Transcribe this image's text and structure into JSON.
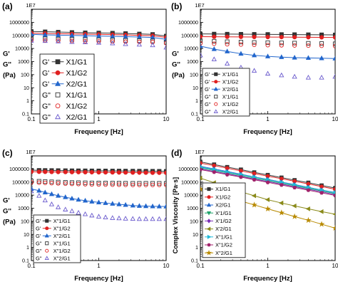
{
  "chart_data": [
    {
      "panel_label": "(a)",
      "type": "scatter",
      "xlabel": "Frequency [Hz]",
      "ylabel_lines": [
        "G'",
        "G''",
        "(Pa)"
      ],
      "y_axis_labels": [
        "1E7",
        "1000000",
        "100000",
        "10000",
        "1000",
        "100",
        "10",
        "1",
        "0.1"
      ],
      "x_tick_labels": [
        "0.1",
        "1",
        "10"
      ],
      "xscale": "log",
      "yscale": "log",
      "xlim": [
        0.1,
        10
      ],
      "ylim": [
        0.1,
        10000000
      ],
      "legend_position": "left",
      "x": [
        0.1,
        0.16,
        0.25,
        0.4,
        0.63,
        1.0,
        1.6,
        2.5,
        4.0,
        6.3,
        10
      ],
      "series": [
        {
          "name": "X1/G1",
          "prefix": "G'",
          "marker": "square",
          "filled": true,
          "color": "#333333",
          "values": [
            200000,
            190000,
            180000,
            170000,
            160000,
            155000,
            150000,
            140000,
            130000,
            120000,
            90000
          ]
        },
        {
          "name": "X1/G2",
          "prefix": "G'",
          "marker": "circle",
          "filled": true,
          "color": "#e02020",
          "values": [
            150000,
            140000,
            135000,
            130000,
            125000,
            120000,
            115000,
            110000,
            100000,
            95000,
            70000
          ]
        },
        {
          "name": "X2/G1",
          "prefix": "G'",
          "marker": "triangle",
          "filled": true,
          "color": "#2266cc",
          "values": [
            120000,
            110000,
            105000,
            100000,
            95000,
            90000,
            85000,
            80000,
            75000,
            70000,
            50000
          ]
        },
        {
          "name": "X1/G1",
          "prefix": "G\"",
          "marker": "square",
          "filled": false,
          "color": "#333333",
          "values": [
            60000,
            55000,
            52000,
            50000,
            48000,
            46000,
            44000,
            42000,
            40000,
            38000,
            30000
          ]
        },
        {
          "name": "X1/G2",
          "prefix": "G\"",
          "marker": "circle",
          "filled": false,
          "color": "#e02020",
          "values": [
            45000,
            42000,
            40000,
            38000,
            36000,
            35000,
            34000,
            33000,
            32000,
            31000,
            25000
          ]
        },
        {
          "name": "X2/G1",
          "prefix": "G\"",
          "marker": "triangle",
          "filled": false,
          "color": "#6a5acd",
          "values": [
            40000,
            38000,
            35000,
            32000,
            30000,
            28000,
            25000,
            22000,
            20000,
            18000,
            12000
          ]
        }
      ]
    },
    {
      "panel_label": "(b)",
      "type": "scatter",
      "xlabel": "Frequency [Hz]",
      "ylabel_lines": [
        "G'",
        "G''",
        "(Pa)"
      ],
      "y_axis_labels": [
        "1E7",
        "1000000",
        "100000",
        "10000",
        "1000",
        "100",
        "10",
        "1",
        "0.1"
      ],
      "x_tick_labels": [
        "0.1",
        "1",
        "10"
      ],
      "xscale": "log",
      "yscale": "log",
      "xlim": [
        0.1,
        10
      ],
      "ylim": [
        0.1,
        10000000
      ],
      "legend_position": "bottom-left",
      "x": [
        0.1,
        0.16,
        0.25,
        0.4,
        0.63,
        1.0,
        1.6,
        2.5,
        4.0,
        6.3,
        10
      ],
      "series": [
        {
          "name": "X'1/G1",
          "prefix": "G'",
          "marker": "square",
          "filled": true,
          "color": "#333333",
          "values": [
            130000,
            128000,
            126000,
            124000,
            122000,
            120000,
            118000,
            116000,
            114000,
            112000,
            110000
          ]
        },
        {
          "name": "X'1/G2",
          "prefix": "G'",
          "marker": "circle",
          "filled": true,
          "color": "#e02020",
          "values": [
            80000,
            79000,
            78000,
            77000,
            76000,
            75000,
            74000,
            73000,
            72000,
            71000,
            70000
          ]
        },
        {
          "name": "X'2/G1",
          "prefix": "G'",
          "marker": "triangle",
          "filled": true,
          "color": "#2266cc",
          "values": [
            15000,
            9000,
            6000,
            4000,
            3000,
            2500,
            2200,
            2000,
            1900,
            1800,
            1700
          ]
        },
        {
          "name": "X'1/G1",
          "prefix": "G\"",
          "marker": "square",
          "filled": false,
          "color": "#333333",
          "values": [
            40000,
            36000,
            33000,
            31000,
            29000,
            28000,
            27000,
            26000,
            25000,
            24000,
            23000
          ]
        },
        {
          "name": "X'1/G2",
          "prefix": "G\"",
          "marker": "circle",
          "filled": false,
          "color": "#e02020",
          "values": [
            25000,
            23000,
            21000,
            20000,
            19000,
            18000,
            17500,
            17000,
            16500,
            16000,
            15000
          ]
        },
        {
          "name": "X'2/G1",
          "prefix": "G\"",
          "marker": "triangle",
          "filled": false,
          "color": "#6a5acd",
          "values": [
            3000,
            1500,
            700,
            350,
            200,
            120,
            90,
            70,
            60,
            60,
            70
          ]
        }
      ]
    },
    {
      "panel_label": "(c)",
      "type": "scatter",
      "xlabel": "Frequency [Hz]",
      "ylabel_lines": [
        "G'",
        "G''",
        "(Pa)"
      ],
      "y_axis_labels": [
        "1E7",
        "1000000",
        "100000",
        "10000",
        "1000",
        "100",
        "10",
        "1",
        "0.1"
      ],
      "x_tick_labels": [
        "0.1",
        "1",
        "10"
      ],
      "xscale": "log",
      "yscale": "log",
      "xlim": [
        0.1,
        10
      ],
      "ylim": [
        0.1,
        10000000
      ],
      "legend_position": "bottom-left",
      "x": [
        0.1,
        0.13,
        0.16,
        0.2,
        0.25,
        0.32,
        0.4,
        0.5,
        0.63,
        0.79,
        1.0,
        1.26,
        1.6,
        2.0,
        2.5,
        3.2,
        4.0,
        5.0,
        6.3,
        7.9,
        10
      ],
      "series": [
        {
          "name": "X\"1/G1",
          "prefix": "G'",
          "marker": "square",
          "filled": true,
          "color": "#333333",
          "values": [
            800000,
            790000,
            780000,
            770000,
            760000,
            750000,
            740000,
            735000,
            730000,
            725000,
            720000,
            715000,
            710000,
            705000,
            700000,
            695000,
            690000,
            685000,
            680000,
            675000,
            670000
          ]
        },
        {
          "name": "X\"1/G2",
          "prefix": "G'",
          "marker": "circle",
          "filled": true,
          "color": "#e02020",
          "values": [
            620000,
            610000,
            600000,
            590000,
            585000,
            580000,
            575000,
            570000,
            565000,
            560000,
            555000,
            550000,
            545000,
            540000,
            535000,
            530000,
            525000,
            520000,
            515000,
            510000,
            505000
          ]
        },
        {
          "name": "X\"2/G1",
          "prefix": "G'",
          "marker": "triangle",
          "filled": true,
          "color": "#2266cc",
          "values": [
            30000,
            22000,
            16000,
            12000,
            9000,
            7000,
            5500,
            4500,
            3800,
            3200,
            2800,
            2500,
            2200,
            2000,
            1800,
            1600,
            1500,
            1450,
            1400,
            1380,
            1350
          ]
        },
        {
          "name": "X\"1/G1",
          "prefix": "G\"",
          "marker": "square",
          "filled": false,
          "color": "#333333",
          "values": [
            120000,
            115000,
            110000,
            105000,
            100000,
            95000,
            92000,
            90000,
            88000,
            86000,
            85000,
            84000,
            83000,
            82000,
            81000,
            80000,
            80000,
            80000,
            80000,
            80000,
            80000
          ]
        },
        {
          "name": "X\"1/G2",
          "prefix": "G\"",
          "marker": "circle",
          "filled": false,
          "color": "#e02020",
          "values": [
            95000,
            90000,
            86000,
            82000,
            78000,
            75000,
            72000,
            70000,
            68000,
            66000,
            65000,
            64000,
            63000,
            62000,
            61000,
            60000,
            60000,
            60000,
            60000,
            60000,
            60000
          ]
        },
        {
          "name": "X\"2/G1",
          "prefix": "G\"",
          "marker": "triangle",
          "filled": false,
          "color": "#6a5acd",
          "values": [
            20000,
            9000,
            4000,
            2000,
            1200,
            800,
            600,
            450,
            350,
            280,
            230,
            200,
            180,
            170,
            160,
            155,
            150,
            150,
            150,
            150,
            150
          ]
        }
      ]
    },
    {
      "panel_label": "(d)",
      "type": "line",
      "xlabel": "Frequency [Hz]",
      "ylabel": "Complex Viscosity [Pa·s]",
      "y_axis_labels": [
        "1E7",
        "1000000",
        "100000",
        "10000",
        "1000",
        "100",
        "10",
        "1",
        "0.1"
      ],
      "x_tick_labels": [
        "0.1",
        "1",
        "10"
      ],
      "xscale": "log",
      "yscale": "log",
      "xlim": [
        0.1,
        10
      ],
      "ylim": [
        0.1,
        10000000
      ],
      "legend_position": "bottom-left",
      "x": [
        0.1,
        0.16,
        0.25,
        0.4,
        0.63,
        1.0,
        1.6,
        2.5,
        4.0,
        6.3,
        10
      ],
      "series": [
        {
          "name": "X1/G1",
          "marker": "square",
          "filled": true,
          "color": "#333333",
          "values": [
            3500000,
            2200000,
            1400000,
            900000,
            550000,
            350000,
            220000,
            140000,
            90000,
            55000,
            35000
          ]
        },
        {
          "name": "X1/G2",
          "marker": "circle",
          "filled": true,
          "color": "#e02020",
          "values": [
            2800000,
            1800000,
            1150000,
            720000,
            450000,
            280000,
            180000,
            115000,
            72000,
            45000,
            28000
          ]
        },
        {
          "name": "X2/G1",
          "marker": "triangle",
          "filled": true,
          "color": "#2266cc",
          "values": [
            1600000,
            1000000,
            650000,
            400000,
            250000,
            160000,
            100000,
            65000,
            40000,
            25000,
            16000
          ]
        },
        {
          "name": "X'1/G1",
          "marker": "triangle-down",
          "filled": true,
          "color": "#1fa36a",
          "values": [
            1200000,
            780000,
            500000,
            320000,
            200000,
            130000,
            82000,
            52000,
            33000,
            21000,
            13000
          ]
        },
        {
          "name": "X'1/G2",
          "marker": "diamond",
          "filled": true,
          "color": "#7a2fb5",
          "values": [
            1000000,
            650000,
            420000,
            270000,
            170000,
            110000,
            70000,
            44000,
            28000,
            18000,
            11000
          ]
        },
        {
          "name": "X'2/G1",
          "marker": "triangle-left",
          "filled": true,
          "color": "#8a8a1a",
          "values": [
            200000,
            90000,
            40000,
            18000,
            9000,
            4500,
            2500,
            1500,
            900,
            550,
            350
          ]
        },
        {
          "name": "X\"1/G1",
          "marker": "triangle-right",
          "filled": true,
          "color": "#20b8d8",
          "values": [
            1400000,
            900000,
            580000,
            370000,
            235000,
            150000,
            95000,
            60000,
            38000,
            24000,
            15000
          ]
        },
        {
          "name": "X\"1/G2",
          "marker": "hexagon",
          "filled": true,
          "color": "#a0226a",
          "values": [
            900000,
            580000,
            370000,
            240000,
            150000,
            95000,
            60000,
            38000,
            24000,
            15000,
            9500
          ]
        },
        {
          "name": "X\"2/G1",
          "marker": "star",
          "filled": true,
          "color": "#b88a00",
          "values": [
            30000,
            15000,
            7000,
            3500,
            1800,
            900,
            450,
            230,
            120,
            60,
            30
          ]
        }
      ]
    }
  ]
}
